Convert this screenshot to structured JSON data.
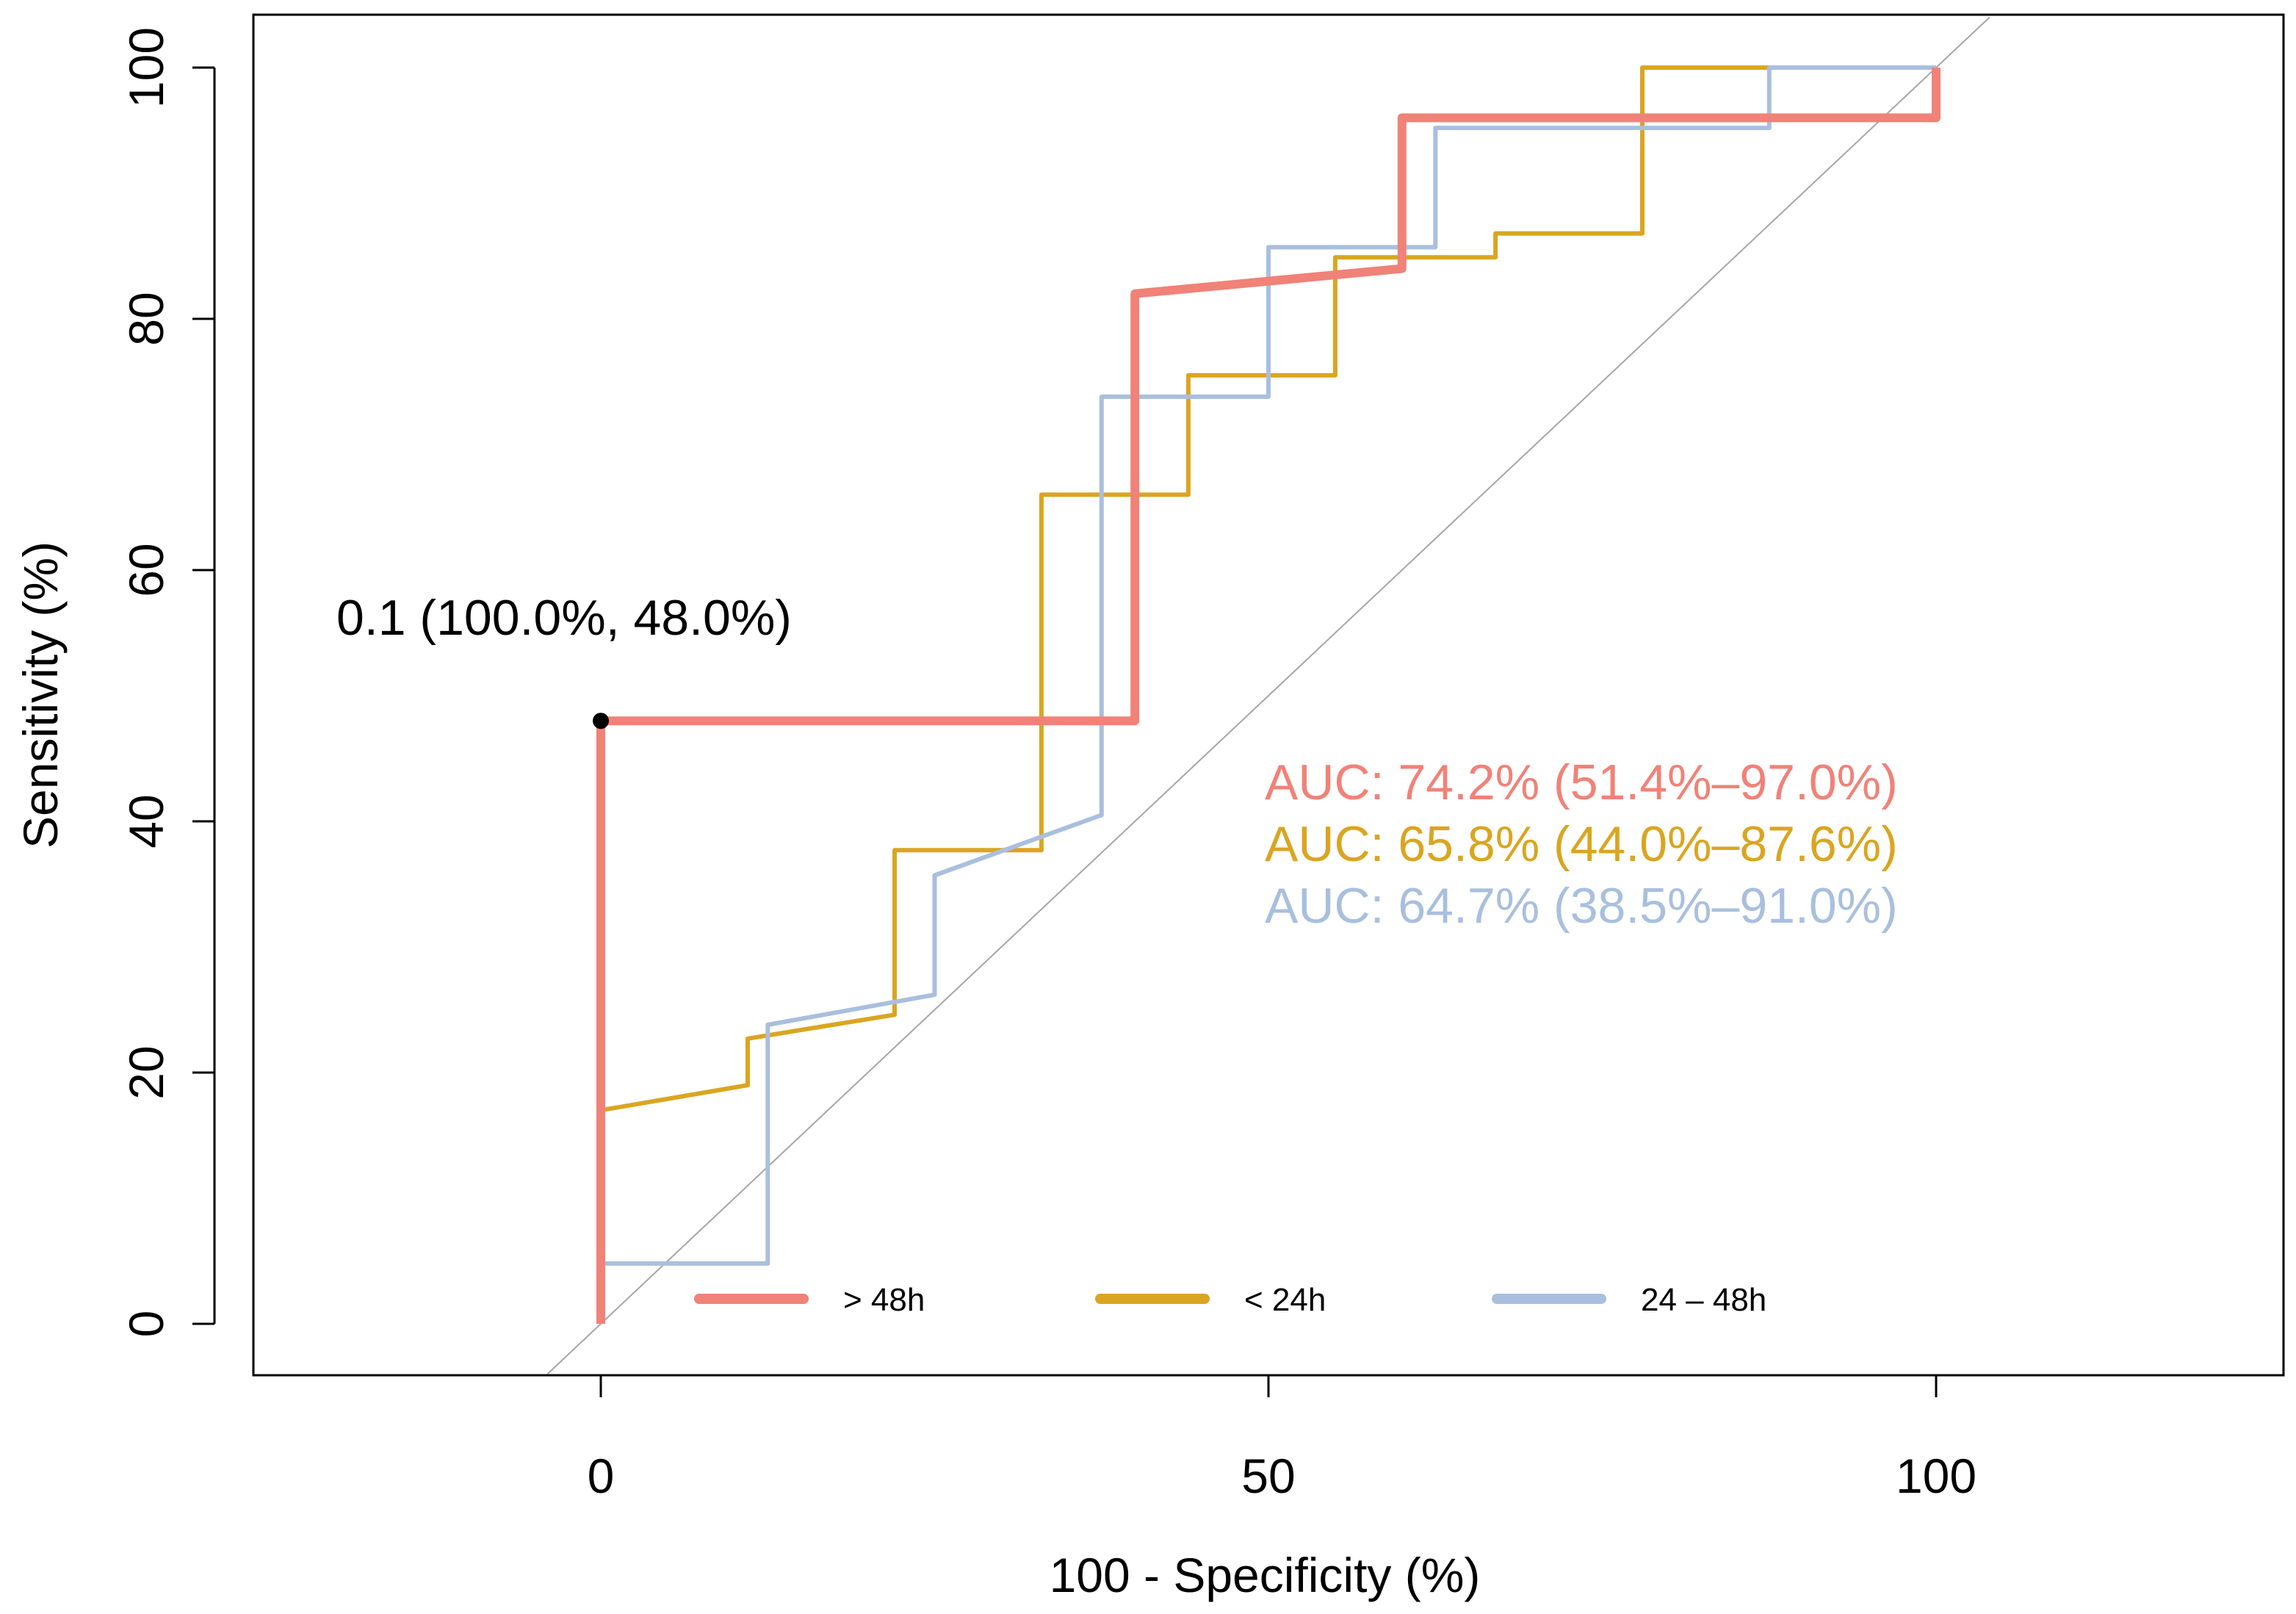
{
  "chart_data": {
    "type": "line",
    "title": "",
    "xlabel": "100 - Specificity (%)",
    "ylabel": "Sensitivity (%)",
    "xlim": [
      -26,
      125
    ],
    "ylim": [
      -4,
      104
    ],
    "xticks": [
      0,
      50,
      100
    ],
    "yticks": [
      0,
      20,
      40,
      60,
      80,
      100
    ],
    "grid": false,
    "diagonal": {
      "from": [
        -4,
        -4
      ],
      "to": [
        104,
        104
      ],
      "color": "#a6a6a6"
    },
    "highlight_point": {
      "x": 0,
      "y": 48,
      "label": "0.1 (100.0%, 48.0%)",
      "color": "#000000"
    },
    "legend_position": "bottom-center",
    "series": [
      {
        "name": "< 24h",
        "color": "#DAA520",
        "auc_label": "AUC: 65.8% (44.0%–87.6%)",
        "points": [
          [
            0,
            0
          ],
          [
            0,
            17
          ],
          [
            11,
            19
          ],
          [
            11,
            22.7
          ],
          [
            22,
            24.6
          ],
          [
            22,
            37.7
          ],
          [
            33,
            37.7
          ],
          [
            33,
            66
          ],
          [
            44,
            66
          ],
          [
            44,
            75.5
          ],
          [
            55,
            75.5
          ],
          [
            55,
            84.9
          ],
          [
            67,
            84.9
          ],
          [
            67,
            86.8
          ],
          [
            78,
            86.8
          ],
          [
            78,
            100
          ],
          [
            100,
            100
          ]
        ]
      },
      {
        "name": "24 – 48h",
        "color": "#A9BFDE",
        "auc_label": "AUC: 64.7% (38.5%–91.0%)",
        "points": [
          [
            0,
            0
          ],
          [
            0,
            4.8
          ],
          [
            12.5,
            4.8
          ],
          [
            12.5,
            23.8
          ],
          [
            25,
            26.2
          ],
          [
            25,
            35.7
          ],
          [
            37.5,
            40.5
          ],
          [
            37.5,
            73.8
          ],
          [
            50,
            73.8
          ],
          [
            50,
            85.7
          ],
          [
            62.5,
            85.7
          ],
          [
            62.5,
            95.2
          ],
          [
            87.5,
            95.2
          ],
          [
            87.5,
            100
          ],
          [
            100,
            100
          ]
        ]
      },
      {
        "name": "> 48h",
        "color": "#F08278",
        "auc_label": "AUC: 74.2% (51.4%–97.0%)",
        "points": [
          [
            0,
            0
          ],
          [
            0,
            48
          ],
          [
            40,
            48
          ],
          [
            40,
            82
          ],
          [
            60,
            84
          ],
          [
            60,
            96
          ],
          [
            100,
            96
          ],
          [
            100,
            100
          ]
        ]
      }
    ]
  }
}
